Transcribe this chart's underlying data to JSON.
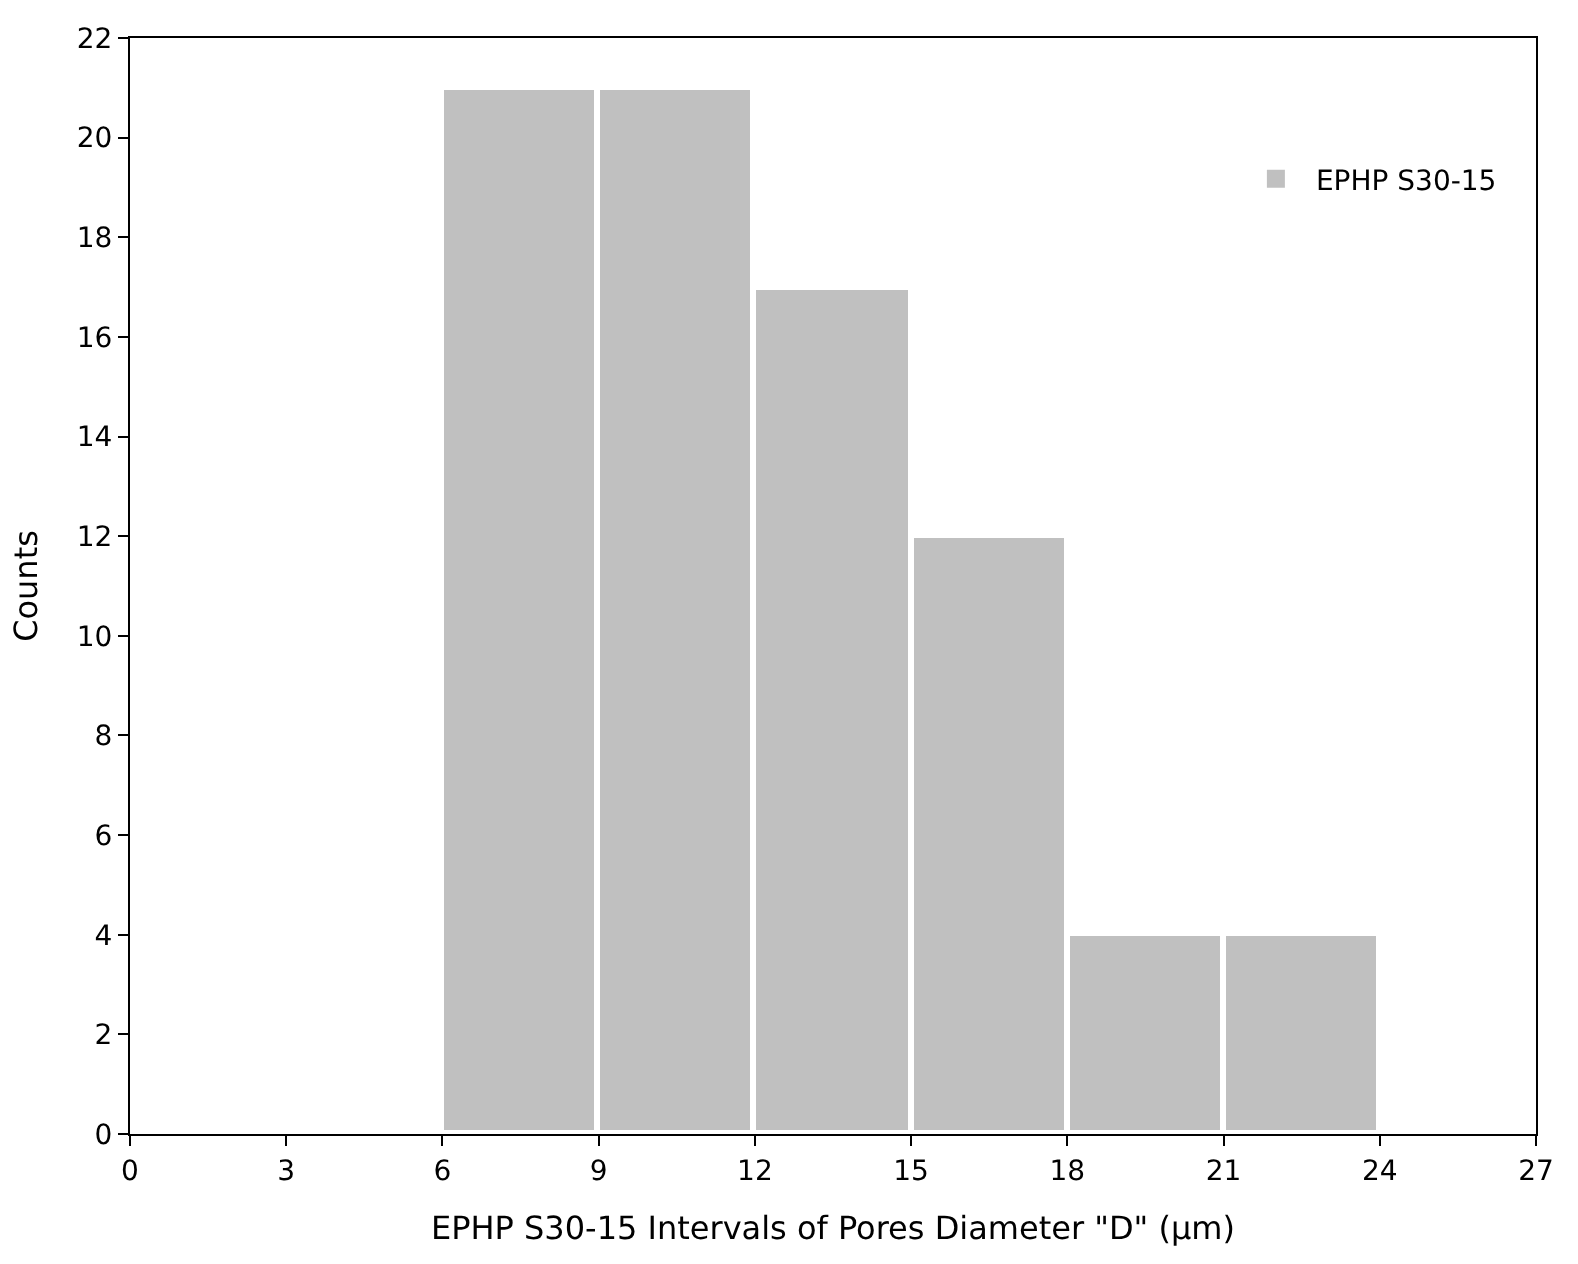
{
  "chart_data": {
    "type": "histogram",
    "xlabel": "EPHP S30-15 Intervals of Pores Diameter \"D\" (μm)",
    "ylabel": "Counts",
    "bins": [
      6,
      9,
      12,
      15,
      18,
      21,
      24
    ],
    "series": [
      {
        "name": "EPHP S30-15",
        "color": "#c0c0c0",
        "values": [
          21,
          21,
          17,
          12,
          4,
          4
        ]
      }
    ],
    "xlim": [
      0,
      27
    ],
    "xticks": [
      0,
      3,
      6,
      9,
      12,
      15,
      18,
      21,
      24,
      27
    ],
    "ylim": [
      0,
      22
    ],
    "yticks": [
      0,
      2,
      4,
      6,
      8,
      10,
      12,
      14,
      16,
      18,
      20,
      22
    ],
    "legend": "top right"
  }
}
